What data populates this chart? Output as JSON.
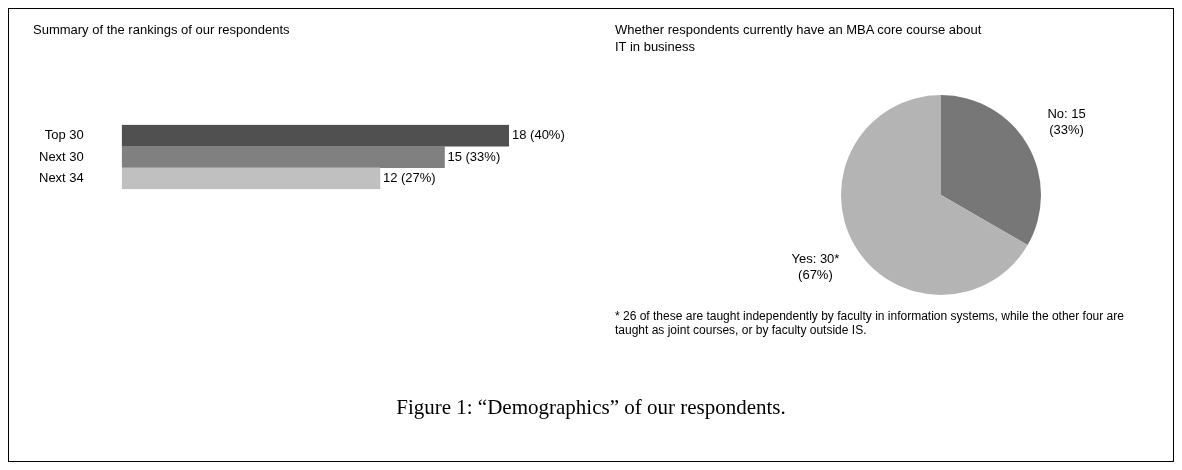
{
  "chart_data": [
    {
      "type": "bar",
      "orientation": "horizontal",
      "title": "Summary of the rankings of our respondents",
      "categories": [
        "Top 30",
        "Next 30",
        "Next 34"
      ],
      "values": [
        18,
        15,
        12
      ],
      "colors": [
        "#505050",
        "#808080",
        "#c0c0c0"
      ],
      "value_labels": [
        "18 (40%)",
        "15 (33%)",
        "12 (27%)"
      ],
      "annotations": [
        "Figure 1: “Demographics” of our respondents."
      ]
    },
    {
      "type": "pie",
      "title": "Whether respondents currently have an MBA core course about IT in business",
      "categories": [
        "No",
        "Yes"
      ],
      "values": [
        15,
        30
      ],
      "colors": [
        "#777777",
        "#b4b4b4"
      ],
      "value_labels": [
        "15\n(33%)",
        "30*\n(67%)"
      ],
      "annotations": [
        "* 26 of these are taught independently by faculty in information systems, while the other four are taught as joint courses, or by faculty outside IS."
      ]
    }
  ]
}
